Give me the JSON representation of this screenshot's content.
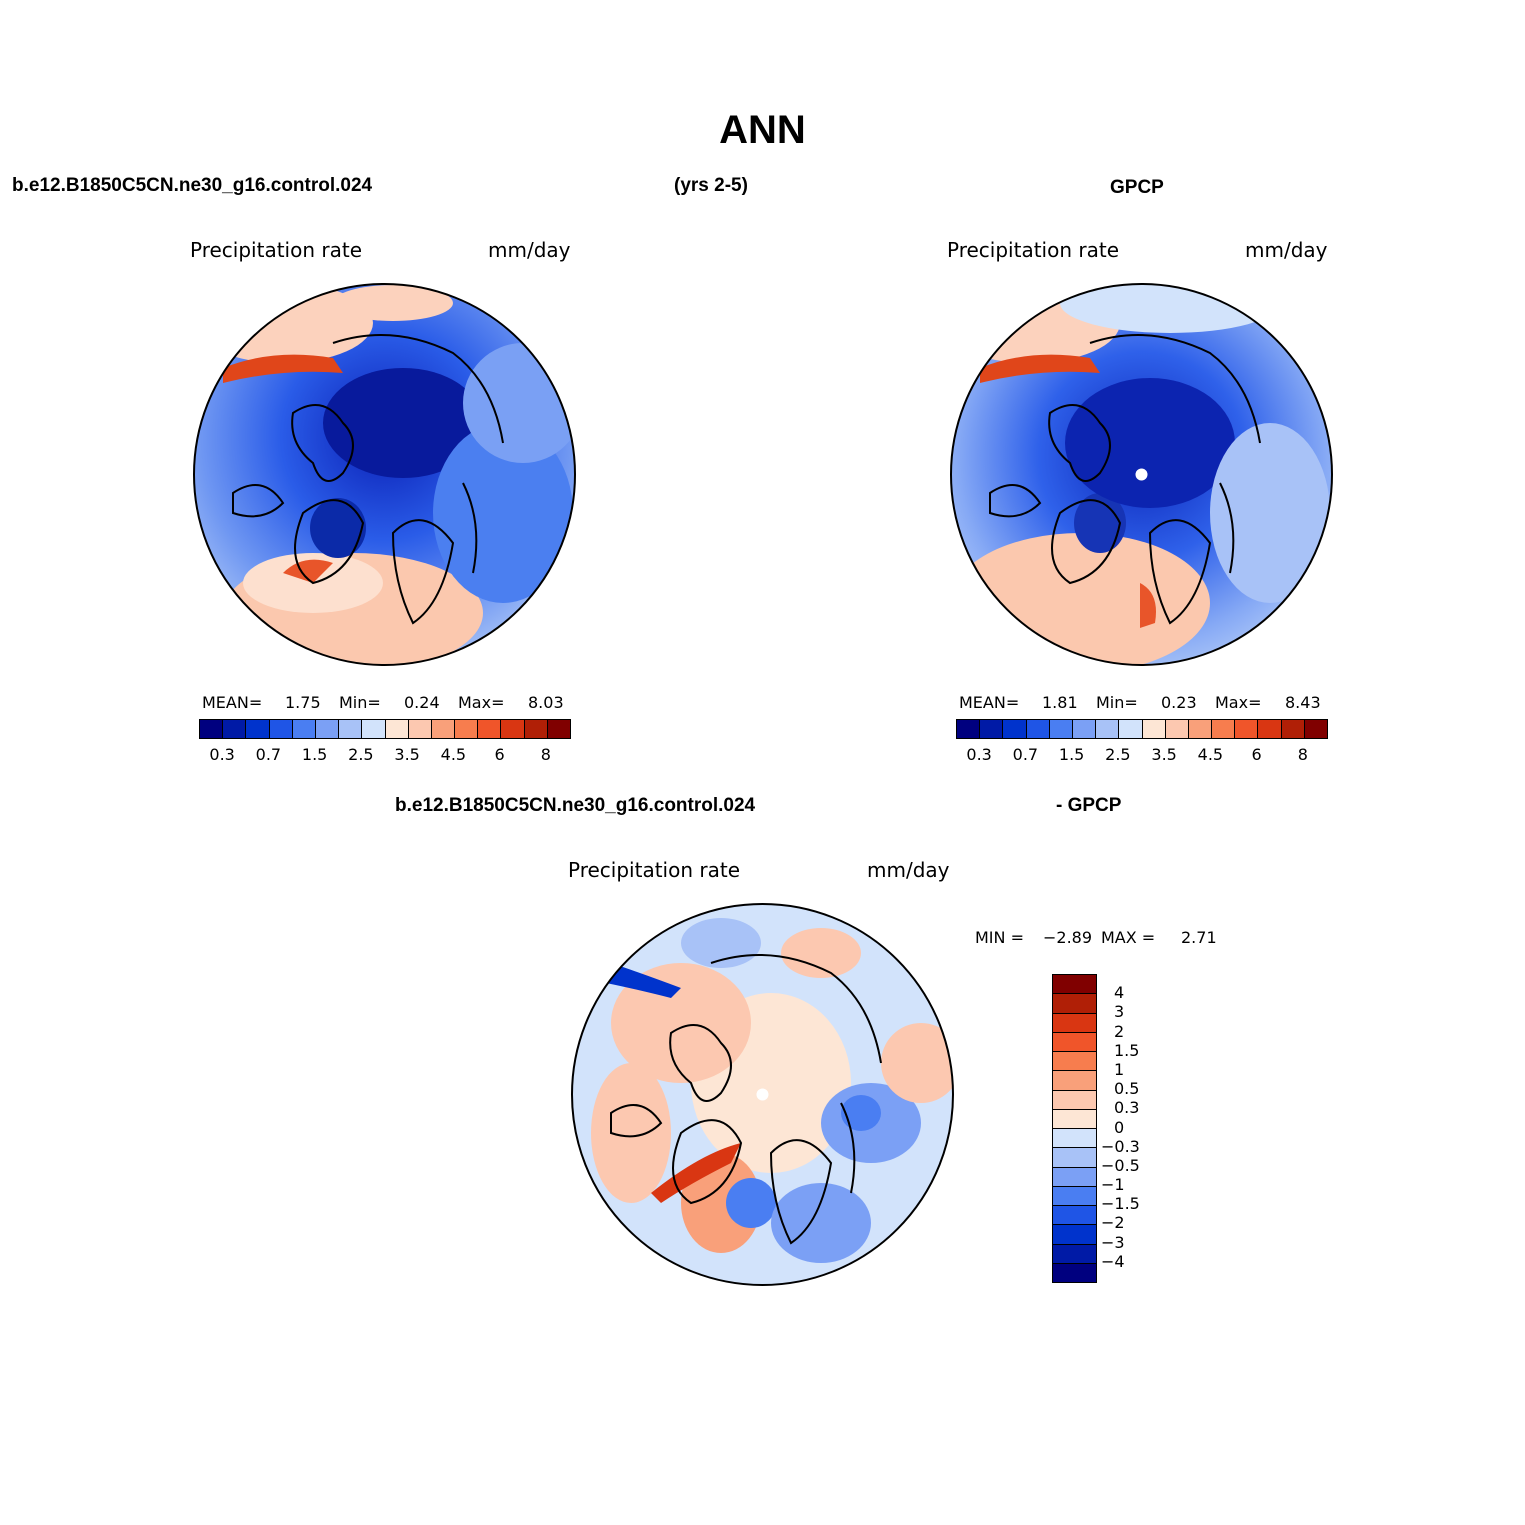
{
  "title": "ANN",
  "header": {
    "case_name": "b.e12.B1850C5CN.ne30_g16.control.024",
    "years": "(yrs 2-5)",
    "obs_name": "GPCP"
  },
  "panel_left": {
    "variable": "Precipitation rate",
    "units": "mm/day",
    "mean_label": "MEAN=",
    "mean": "1.75",
    "min_label": "Min=",
    "min": "0.24",
    "max_label": "Max=",
    "max": "8.03"
  },
  "panel_right": {
    "variable": "Precipitation rate",
    "units": "mm/day",
    "mean_label": "MEAN=",
    "mean": "1.81",
    "min_label": "Min=",
    "min": "0.23",
    "max_label": "Max=",
    "max": "8.43"
  },
  "panel_diff": {
    "case_name": "b.e12.B1850C5CN.ne30_g16.control.024",
    "obs_suffix": "- GPCP",
    "variable": "Precipitation rate",
    "units": "mm/day",
    "min_label": "MIN =",
    "min": "−2.89",
    "max_label": "MAX =",
    "max": "2.71"
  },
  "colorbar_precip": {
    "colors": [
      "#00007f",
      "#001aa6",
      "#0033cc",
      "#1f55e6",
      "#4a7ef2",
      "#7ba0f5",
      "#a8c2f7",
      "#d2e3fb",
      "#fde6d5",
      "#fcc8b0",
      "#f9a07a",
      "#f77d4e",
      "#f0552a",
      "#d93612",
      "#b01f06",
      "#800000"
    ],
    "labels": [
      "0.3",
      "0.7",
      "1.5",
      "2.5",
      "3.5",
      "4.5",
      "6",
      "8"
    ]
  },
  "colorbar_diff": {
    "colors": [
      "#800000",
      "#b01f06",
      "#d93612",
      "#f0552a",
      "#f77d4e",
      "#f9a07a",
      "#fcc8b0",
      "#fde6d5",
      "#d2e3fb",
      "#a8c2f7",
      "#7ba0f5",
      "#4a7ef2",
      "#1f55e6",
      "#0033cc",
      "#001aa6",
      "#00007f"
    ],
    "labels": [
      "4",
      "3",
      "2",
      "1.5",
      "1",
      "0.5",
      "0.3",
      "0",
      "−0.3",
      "−0.5",
      "−1",
      "−1.5",
      "−2",
      "−3",
      "−4"
    ]
  }
}
